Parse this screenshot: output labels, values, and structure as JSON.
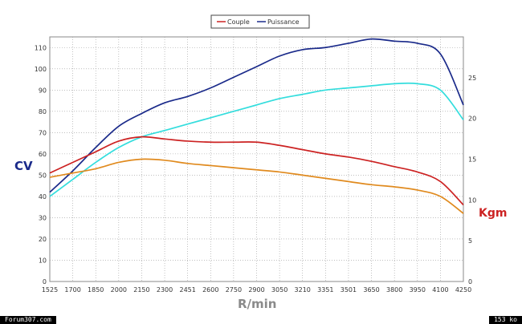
{
  "chart_data": {
    "type": "line",
    "xlabel": "R/min",
    "x_ticks": [
      "1525",
      "1700",
      "1850",
      "2000",
      "2150",
      "2300",
      "2451",
      "2600",
      "2750",
      "2900",
      "3050",
      "3210",
      "3351",
      "3501",
      "3650",
      "3800",
      "3950",
      "4100",
      "4250"
    ],
    "y_left_label": "CV",
    "y_left_ticks": [
      0,
      10,
      20,
      30,
      40,
      50,
      60,
      70,
      80,
      90,
      100,
      110
    ],
    "y_left_lim": [
      0,
      115
    ],
    "y_right_label": "Kgm",
    "y_right_ticks": [
      0,
      5,
      10,
      15,
      20,
      25
    ],
    "y_right_lim": [
      0,
      30
    ],
    "grid": true,
    "legend": [
      {
        "name": "Couple",
        "color": "#cc2222"
      },
      {
        "name": "Puissance",
        "color": "#1a2a8a"
      }
    ],
    "series": [
      {
        "name": "Puissance",
        "axis": "left",
        "color": "#1a2a8a",
        "x": [
          1525,
          1700,
          1850,
          2000,
          2150,
          2300,
          2451,
          2600,
          2750,
          2900,
          3050,
          3210,
          3351,
          3501,
          3650,
          3800,
          3950,
          4100,
          4250
        ],
        "values": [
          42,
          52,
          63,
          73,
          79,
          84,
          87,
          91,
          96,
          101,
          106,
          109,
          110,
          112,
          114,
          113,
          112,
          107,
          83
        ]
      },
      {
        "color": "#33dddd",
        "axis": "left",
        "x": [
          1525,
          1700,
          1850,
          2000,
          2150,
          2300,
          2451,
          2600,
          2750,
          2900,
          3050,
          3210,
          3351,
          3501,
          3650,
          3800,
          3950,
          4100,
          4250
        ],
        "values": [
          40,
          48,
          56,
          63,
          68,
          71,
          74,
          77,
          80,
          83,
          86,
          88,
          90,
          91,
          92,
          93,
          93,
          90,
          76
        ]
      },
      {
        "color": "#cc2222",
        "axis": "left",
        "x": [
          1525,
          1700,
          1850,
          2000,
          2150,
          2300,
          2451,
          2600,
          2750,
          2900,
          3050,
          3210,
          3351,
          3501,
          3650,
          3800,
          3950,
          4100,
          4250
        ],
        "values": [
          51,
          56,
          61,
          66,
          68,
          67,
          66,
          65.5,
          65.5,
          65.5,
          64,
          62,
          60,
          58.5,
          56.5,
          54,
          51.5,
          47,
          36
        ]
      },
      {
        "color": "#e08a1e",
        "axis": "left",
        "x": [
          1525,
          1700,
          1850,
          2000,
          2150,
          2300,
          2451,
          2600,
          2750,
          2900,
          3050,
          3210,
          3351,
          3501,
          3650,
          3800,
          3950,
          4100,
          4250
        ],
        "values": [
          49,
          51,
          53,
          56,
          57.5,
          57,
          55.5,
          54.5,
          53.5,
          52.5,
          51.5,
          50,
          48.5,
          47,
          45.5,
          44.5,
          43,
          40,
          32
        ]
      }
    ]
  },
  "footer": {
    "left_text": "Forum307.com",
    "right_text": "153 ko"
  }
}
